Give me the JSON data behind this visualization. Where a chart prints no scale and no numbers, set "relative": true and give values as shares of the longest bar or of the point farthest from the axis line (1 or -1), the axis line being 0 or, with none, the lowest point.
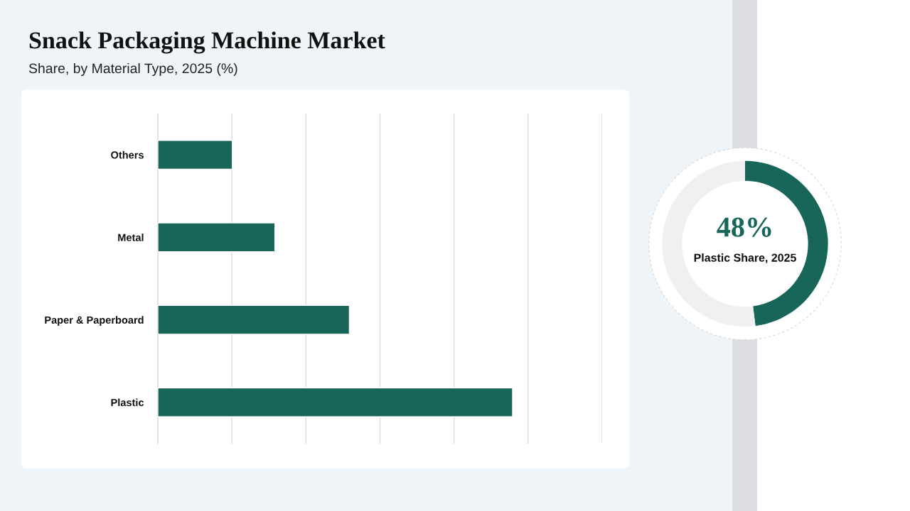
{
  "chart_data": [
    {
      "type": "bar",
      "title": "Snack Packaging Machine Market",
      "subtitle": "Share, by Material Type, 2025 (%)",
      "orientation": "horizontal",
      "relative": true,
      "categories": [
        "Others",
        "Metal",
        "Paper & Paperboard",
        "Plastic"
      ],
      "values": [
        0.21,
        0.33,
        0.54,
        1
      ],
      "color": "#18665a",
      "grid": "x",
      "tick_labels": "y"
    },
    {
      "type": "donut",
      "categories": [
        null,
        null
      ],
      "values": [
        48,
        52
      ],
      "colors": [
        "#18665a",
        "#f0f0f0"
      ],
      "value_labels": [
        "48%",
        null
      ],
      "annotations": [
        "Plastic Share, 2025"
      ]
    }
  ]
}
